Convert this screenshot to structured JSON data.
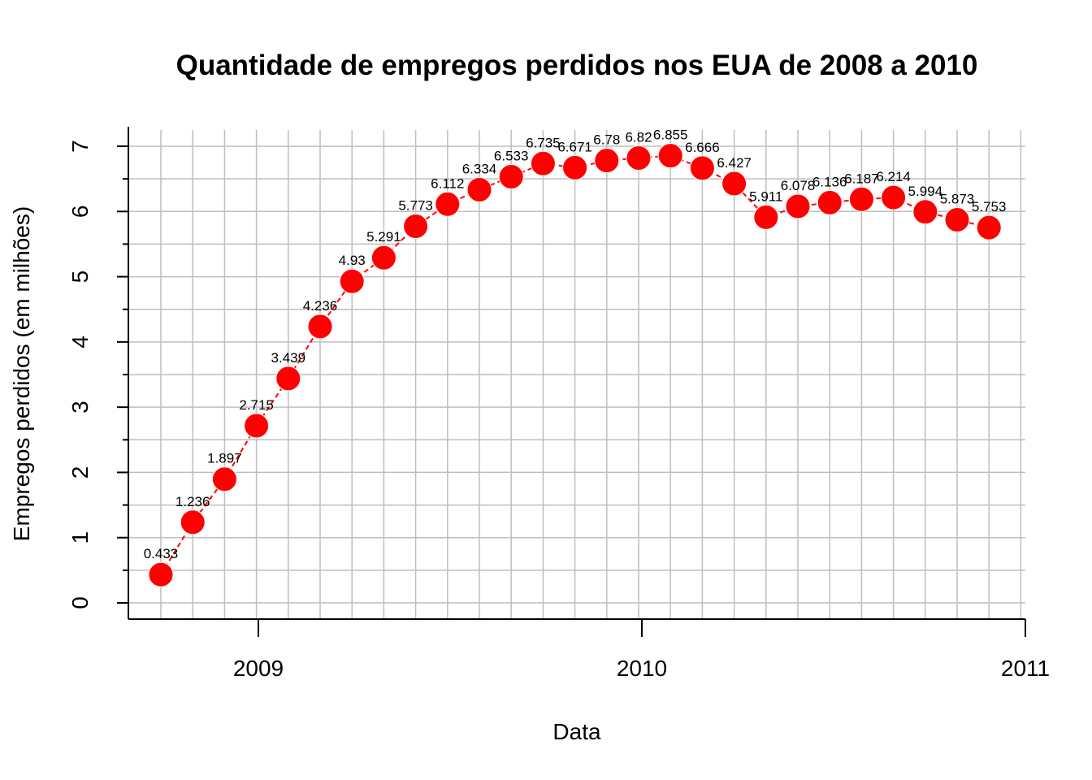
{
  "chart_data": {
    "type": "line",
    "title": "Quantidade de empregos perdidos nos EUA de 2008 a 2010",
    "xlabel": "Data",
    "ylabel": "Empregos perdidos (em milhões)",
    "ylim": [
      0,
      7
    ],
    "y_ticks": [
      "0",
      "1",
      "2",
      "3",
      "4",
      "5",
      "6",
      "7"
    ],
    "x_ticks": [
      "2009",
      "2010",
      "2011"
    ],
    "series": [
      {
        "name": "Empregos perdidos",
        "color": "#ff0000",
        "labels": [
          "0.433",
          "1.236",
          "1.897",
          "2.715",
          "3.439",
          "4.236",
          "4.93",
          "5.291",
          "5.773",
          "6.112",
          "6.334",
          "6.533",
          "6.735",
          "6.671",
          "6.78",
          "6.82",
          "6.855",
          "6.666",
          "6.427",
          "5.911",
          "6.078",
          "6.136",
          "6.187",
          "6.214",
          "5.994",
          "5.873",
          "5.753"
        ],
        "values": [
          0.433,
          1.236,
          1.897,
          2.715,
          3.439,
          4.236,
          4.93,
          5.291,
          5.773,
          6.112,
          6.334,
          6.533,
          6.735,
          6.671,
          6.78,
          6.82,
          6.855,
          6.666,
          6.427,
          5.911,
          6.078,
          6.136,
          6.187,
          6.214,
          5.994,
          5.873,
          5.753
        ]
      }
    ],
    "grid": true
  }
}
